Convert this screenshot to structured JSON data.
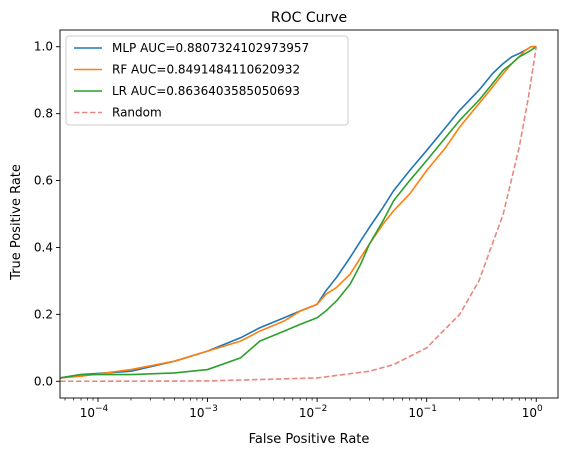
{
  "chart_data": {
    "type": "line",
    "title": "ROC Curve",
    "xlabel": "False Positive Rate",
    "ylabel": "True Positive Rate",
    "x_scale": "log",
    "xlim": [
      4.5e-05,
      1.58
    ],
    "ylim": [
      -0.05,
      1.05
    ],
    "x_ticks": [
      {
        "value": 0.0001,
        "base": "10",
        "exp": "−4"
      },
      {
        "value": 0.001,
        "base": "10",
        "exp": "−3"
      },
      {
        "value": 0.01,
        "base": "10",
        "exp": "−2"
      },
      {
        "value": 0.1,
        "base": "10",
        "exp": "−1"
      },
      {
        "value": 1,
        "base": "10",
        "exp": "0"
      }
    ],
    "y_ticks": [
      "0.0",
      "0.2",
      "0.4",
      "0.6",
      "0.8",
      "1.0"
    ],
    "grid": false,
    "legend_position": "top-left",
    "series": [
      {
        "name": "MLP AUC=0.8807324102973957",
        "color": "#1f77b4",
        "style": "solid",
        "x": [
          4.5e-05,
          7e-05,
          0.0002,
          0.0005,
          0.001,
          0.002,
          0.003,
          0.005,
          0.007,
          0.01,
          0.012,
          0.015,
          0.02,
          0.025,
          0.03,
          0.04,
          0.05,
          0.07,
          0.1,
          0.15,
          0.2,
          0.3,
          0.4,
          0.5,
          0.6,
          0.7,
          0.8,
          0.9,
          1.0
        ],
        "y": [
          0.01,
          0.02,
          0.03,
          0.06,
          0.09,
          0.13,
          0.16,
          0.19,
          0.21,
          0.23,
          0.27,
          0.31,
          0.37,
          0.42,
          0.46,
          0.52,
          0.57,
          0.63,
          0.69,
          0.76,
          0.81,
          0.87,
          0.92,
          0.95,
          0.97,
          0.98,
          0.99,
          1.0,
          1.0
        ]
      },
      {
        "name": "RF AUC=0.8491484110620932",
        "color": "#ff7f0e",
        "style": "solid",
        "x": [
          4.5e-05,
          7e-05,
          0.0002,
          0.0005,
          0.001,
          0.002,
          0.003,
          0.005,
          0.007,
          0.01,
          0.012,
          0.015,
          0.02,
          0.025,
          0.03,
          0.04,
          0.05,
          0.07,
          0.1,
          0.15,
          0.2,
          0.3,
          0.4,
          0.5,
          0.6,
          0.7,
          0.8,
          0.9,
          1.0
        ],
        "y": [
          0.01,
          0.015,
          0.035,
          0.06,
          0.09,
          0.12,
          0.15,
          0.18,
          0.21,
          0.23,
          0.26,
          0.28,
          0.32,
          0.37,
          0.41,
          0.47,
          0.51,
          0.56,
          0.63,
          0.7,
          0.76,
          0.83,
          0.88,
          0.92,
          0.95,
          0.97,
          0.99,
          1.0,
          1.0
        ]
      },
      {
        "name": "LR AUC=0.8636403585050693",
        "color": "#2ca02c",
        "style": "solid",
        "x": [
          4.5e-05,
          7e-05,
          0.0002,
          0.0005,
          0.001,
          0.002,
          0.003,
          0.005,
          0.007,
          0.01,
          0.012,
          0.015,
          0.02,
          0.025,
          0.03,
          0.04,
          0.05,
          0.07,
          0.1,
          0.15,
          0.2,
          0.3,
          0.4,
          0.5,
          0.6,
          0.7,
          0.8,
          0.9,
          1.0
        ],
        "y": [
          0.01,
          0.02,
          0.02,
          0.025,
          0.035,
          0.07,
          0.12,
          0.15,
          0.17,
          0.19,
          0.21,
          0.24,
          0.29,
          0.35,
          0.41,
          0.48,
          0.54,
          0.6,
          0.66,
          0.73,
          0.78,
          0.84,
          0.89,
          0.93,
          0.95,
          0.97,
          0.98,
          0.99,
          1.0
        ]
      },
      {
        "name": "Random",
        "color": "#e8877f",
        "style": "dashed",
        "x": [
          4.5e-05,
          0.0001,
          0.001,
          0.01,
          0.03,
          0.05,
          0.1,
          0.2,
          0.3,
          0.5,
          0.7,
          0.85,
          1.0
        ],
        "y": [
          4.5e-05,
          0.0001,
          0.001,
          0.01,
          0.03,
          0.05,
          0.1,
          0.2,
          0.3,
          0.5,
          0.7,
          0.85,
          1.0
        ]
      }
    ]
  }
}
